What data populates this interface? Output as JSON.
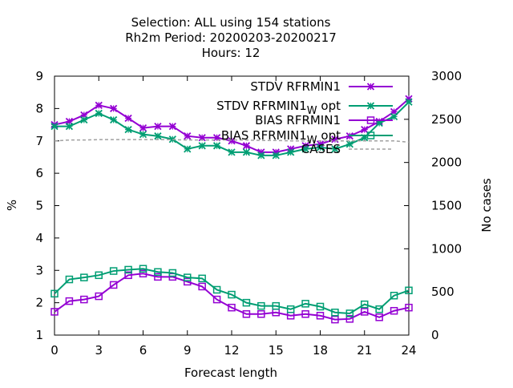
{
  "chart_data": {
    "type": "line",
    "title": {
      "line1": "Selection: ALL using   154 stations",
      "line2": "Rh2m   Period: 20200203-20200217",
      "line3": "Hours:  12"
    },
    "xlabel": "Forecast length",
    "ylabel": "%",
    "y2label": "No cases",
    "xlim": [
      0,
      24
    ],
    "ylim": [
      1,
      9
    ],
    "y2lim": [
      0,
      3000
    ],
    "xticks": [
      "0",
      "3",
      "6",
      "9",
      "12",
      "15",
      "18",
      "21",
      "24"
    ],
    "yticks": [
      "1",
      "2",
      "3",
      "4",
      "5",
      "6",
      "7",
      "8",
      "9"
    ],
    "y2ticks": [
      "0",
      "500",
      "1000",
      "1500",
      "2000",
      "2500",
      "3000"
    ],
    "grid": false,
    "legend_position": "top-right",
    "x": [
      0,
      1,
      2,
      3,
      4,
      5,
      6,
      7,
      8,
      9,
      10,
      11,
      12,
      13,
      14,
      15,
      16,
      17,
      18,
      19,
      20,
      21,
      22,
      23,
      24
    ],
    "series": [
      {
        "name": "STDV RFRMIN1",
        "axis": "y1",
        "color": "#9400d3",
        "marker": "x",
        "values": [
          7.5,
          7.6,
          7.8,
          8.1,
          8.0,
          7.7,
          7.4,
          7.45,
          7.45,
          7.15,
          7.1,
          7.1,
          7.0,
          6.85,
          6.65,
          6.65,
          6.75,
          6.85,
          6.9,
          7.05,
          7.15,
          7.35,
          7.6,
          7.9,
          8.3
        ]
      },
      {
        "name": "STDV RFRMIN1_W opt",
        "axis": "y1",
        "color": "#009e73",
        "marker": "x",
        "values": [
          7.45,
          7.45,
          7.65,
          7.85,
          7.65,
          7.35,
          7.2,
          7.15,
          7.05,
          6.75,
          6.85,
          6.85,
          6.65,
          6.65,
          6.55,
          6.55,
          6.65,
          6.75,
          6.8,
          6.75,
          6.9,
          7.1,
          7.55,
          7.75,
          8.2
        ]
      },
      {
        "name": "BIAS RFRMIN1",
        "axis": "y1",
        "color": "#9400d3",
        "marker": "square",
        "values": [
          1.72,
          2.05,
          2.1,
          2.2,
          2.55,
          2.85,
          2.9,
          2.8,
          2.8,
          2.65,
          2.5,
          2.1,
          1.85,
          1.65,
          1.65,
          1.7,
          1.6,
          1.65,
          1.6,
          1.48,
          1.5,
          1.72,
          1.55,
          1.75,
          1.85
        ]
      },
      {
        "name": "BIAS RFRMIN1_W opt",
        "axis": "y1",
        "color": "#009e73",
        "marker": "square",
        "values": [
          2.28,
          2.72,
          2.78,
          2.85,
          2.98,
          3.02,
          3.05,
          2.95,
          2.92,
          2.78,
          2.75,
          2.4,
          2.25,
          2.0,
          1.9,
          1.9,
          1.8,
          1.97,
          1.88,
          1.7,
          1.67,
          1.95,
          1.8,
          2.22,
          2.38
        ]
      },
      {
        "name": "CASES",
        "axis": "y2",
        "color": "#a0a0a0",
        "style": "dashed",
        "values": [
          2250,
          2260,
          2260,
          2265,
          2265,
          2265,
          2265,
          2265,
          2265,
          2260,
          2260,
          2260,
          2260,
          2260,
          2255,
          2255,
          2250,
          2250,
          2250,
          2250,
          2250,
          2250,
          2250,
          2250,
          2235
        ]
      }
    ]
  }
}
